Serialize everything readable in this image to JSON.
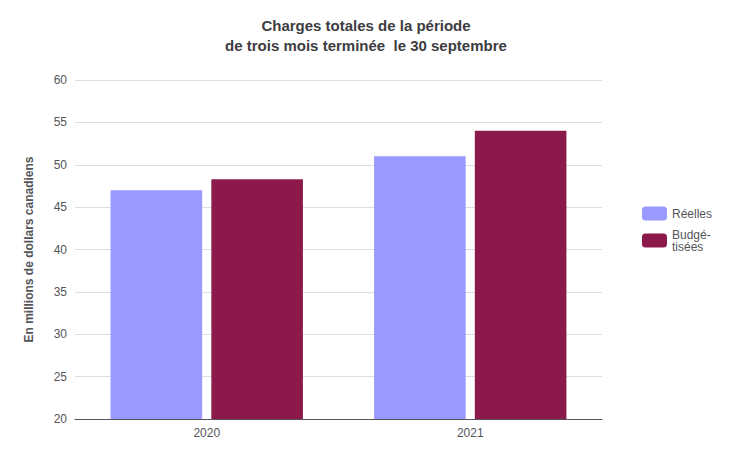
{
  "chart_data": {
    "type": "bar",
    "title": "Charges totales de la période\nde trois mois terminée  le 30 septembre",
    "y_label": "En millions de dollars canadiens",
    "categories": [
      "2020",
      "2021"
    ],
    "series": [
      {
        "name": "Réelles",
        "color": "#9999FF",
        "values": [
          47,
          51
        ]
      },
      {
        "name": "Budgé-\ntisées",
        "color": "#8B1A4A",
        "values": [
          48.3,
          54
        ]
      }
    ],
    "ylim": [
      20,
      60
    ],
    "yticks": [
      20,
      25,
      30,
      35,
      40,
      45,
      50,
      55,
      60
    ],
    "grid": true,
    "legend": "right"
  }
}
